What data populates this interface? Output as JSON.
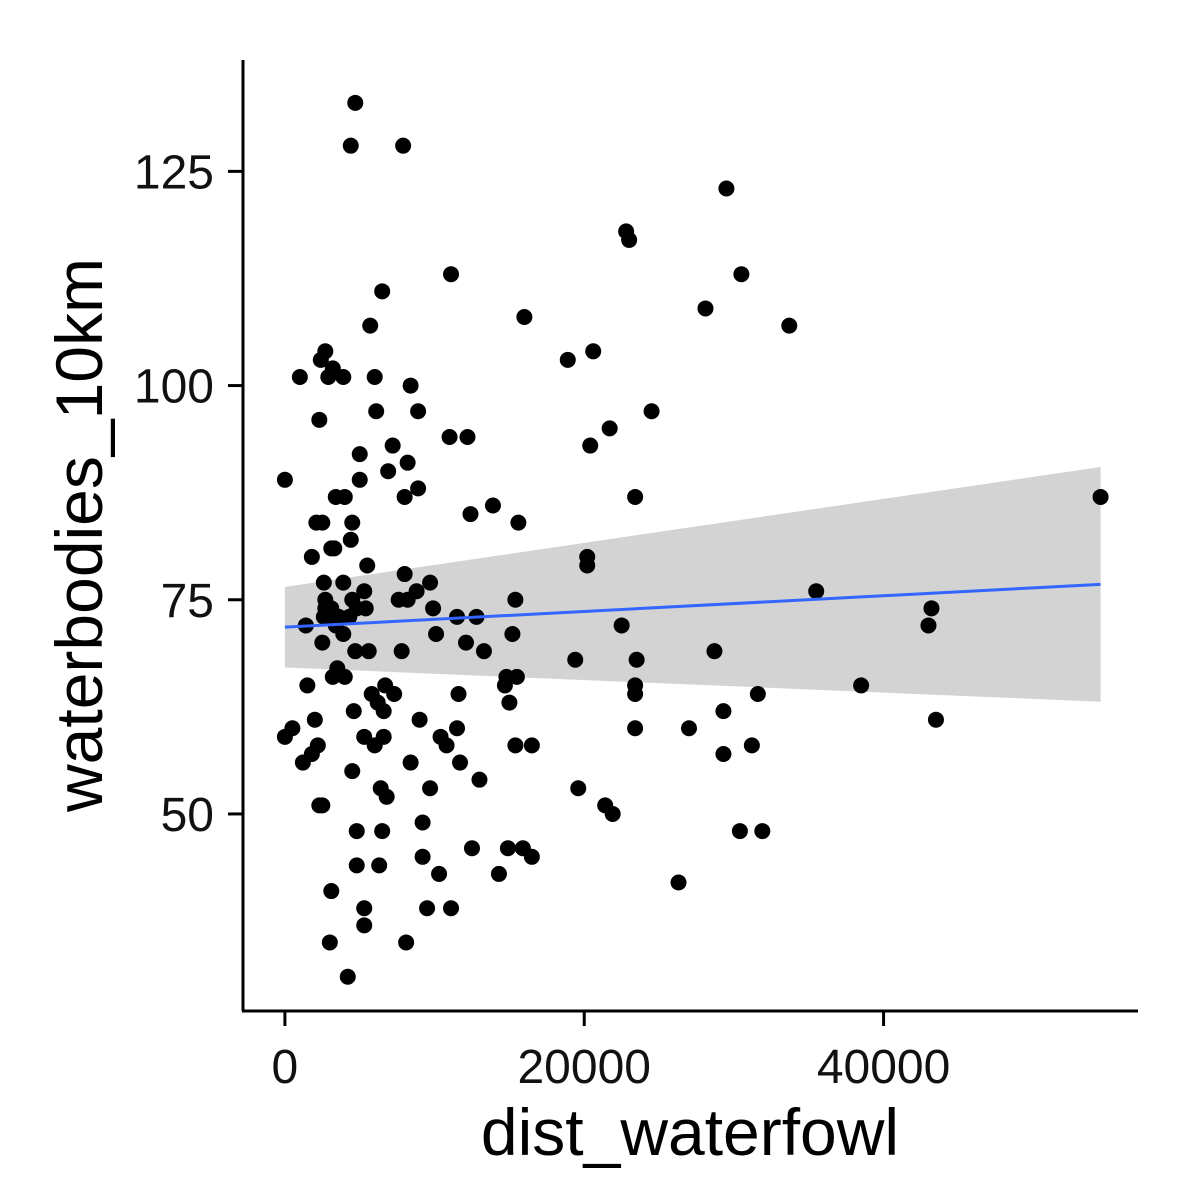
{
  "chart_data": {
    "type": "scatter",
    "title": "",
    "xlabel": "dist_waterfowl",
    "ylabel": "waterbodies_10km",
    "xlim": [
      -2800,
      57000
    ],
    "ylim": [
      27,
      138
    ],
    "xticks": [
      0,
      20000,
      40000
    ],
    "xtick_labels": [
      "0",
      "20000",
      "40000"
    ],
    "yticks": [
      50,
      75,
      100,
      125
    ],
    "ytick_labels": [
      "50",
      "75",
      "100",
      "125"
    ],
    "grid": false,
    "legend": "none",
    "point_color": "#000000",
    "smooth": {
      "method": "linear",
      "color": "#3366FF",
      "band_color": "#D3D3D3",
      "x_range": [
        0,
        54500
      ],
      "fit": [
        71.8,
        76.8
      ],
      "lower": [
        67.1,
        63.1
      ],
      "upper": [
        76.5,
        90.5
      ]
    },
    "points": [
      [
        4700,
        133
      ],
      [
        4400,
        128
      ],
      [
        7900,
        128
      ],
      [
        29500,
        123
      ],
      [
        22800,
        118
      ],
      [
        23000,
        117
      ],
      [
        11100,
        113
      ],
      [
        30500,
        113
      ],
      [
        6500,
        111
      ],
      [
        16000,
        108
      ],
      [
        28100,
        109
      ],
      [
        33700,
        107
      ],
      [
        5700,
        107
      ],
      [
        18900,
        103
      ],
      [
        20600,
        104
      ],
      [
        2700,
        104
      ],
      [
        2400,
        103
      ],
      [
        2900,
        101
      ],
      [
        3200,
        102
      ],
      [
        1000,
        101
      ],
      [
        3900,
        101
      ],
      [
        6000,
        101
      ],
      [
        8400,
        100
      ],
      [
        6100,
        97
      ],
      [
        8900,
        97
      ],
      [
        24500,
        97
      ],
      [
        2300,
        96
      ],
      [
        21700,
        95
      ],
      [
        11000,
        94
      ],
      [
        12200,
        94
      ],
      [
        7200,
        93
      ],
      [
        20400,
        93
      ],
      [
        5000,
        92
      ],
      [
        8200,
        91
      ],
      [
        6900,
        90
      ],
      [
        0,
        89
      ],
      [
        5000,
        89
      ],
      [
        8900,
        88
      ],
      [
        8000,
        87
      ],
      [
        3400,
        87
      ],
      [
        4000,
        87
      ],
      [
        23400,
        87
      ],
      [
        54500,
        87
      ],
      [
        13900,
        86
      ],
      [
        12400,
        85
      ],
      [
        2100,
        84
      ],
      [
        2500,
        84
      ],
      [
        4500,
        84
      ],
      [
        15600,
        84
      ],
      [
        4400,
        82
      ],
      [
        3100,
        81
      ],
      [
        3300,
        81
      ],
      [
        1800,
        80
      ],
      [
        20200,
        80
      ],
      [
        20200,
        79
      ],
      [
        5500,
        79
      ],
      [
        8000,
        78
      ],
      [
        2600,
        77
      ],
      [
        3900,
        77
      ],
      [
        9700,
        77
      ],
      [
        8800,
        76
      ],
      [
        5300,
        76
      ],
      [
        35500,
        76
      ],
      [
        2700,
        75
      ],
      [
        4500,
        75
      ],
      [
        7600,
        75
      ],
      [
        8200,
        75
      ],
      [
        15400,
        75
      ],
      [
        2700,
        74
      ],
      [
        3100,
        74
      ],
      [
        4800,
        74
      ],
      [
        5400,
        74
      ],
      [
        9900,
        74
      ],
      [
        43200,
        74
      ],
      [
        2600,
        73
      ],
      [
        3600,
        73
      ],
      [
        4300,
        73
      ],
      [
        11500,
        73
      ],
      [
        12800,
        73
      ],
      [
        1400,
        72
      ],
      [
        3400,
        72
      ],
      [
        22500,
        72
      ],
      [
        43000,
        72
      ],
      [
        3900,
        71
      ],
      [
        10100,
        71
      ],
      [
        15200,
        71
      ],
      [
        2500,
        70
      ],
      [
        12100,
        70
      ],
      [
        4700,
        69
      ],
      [
        5600,
        69
      ],
      [
        7800,
        69
      ],
      [
        13300,
        69
      ],
      [
        28700,
        69
      ],
      [
        19400,
        68
      ],
      [
        23500,
        68
      ],
      [
        3500,
        67
      ],
      [
        3200,
        66
      ],
      [
        4000,
        66
      ],
      [
        14800,
        66
      ],
      [
        15500,
        66
      ],
      [
        1500,
        65
      ],
      [
        6700,
        65
      ],
      [
        14700,
        65
      ],
      [
        23400,
        65
      ],
      [
        38500,
        65
      ],
      [
        5800,
        64
      ],
      [
        7300,
        64
      ],
      [
        11600,
        64
      ],
      [
        23400,
        64
      ],
      [
        31600,
        64
      ],
      [
        6200,
        63
      ],
      [
        15000,
        63
      ],
      [
        6600,
        62
      ],
      [
        4600,
        62
      ],
      [
        29300,
        62
      ],
      [
        2000,
        61
      ],
      [
        9000,
        61
      ],
      [
        43500,
        61
      ],
      [
        500,
        60
      ],
      [
        11500,
        60
      ],
      [
        23400,
        60
      ],
      [
        27000,
        60
      ],
      [
        0,
        59
      ],
      [
        5300,
        59
      ],
      [
        6600,
        59
      ],
      [
        10400,
        59
      ],
      [
        2200,
        58
      ],
      [
        6000,
        58
      ],
      [
        10800,
        58
      ],
      [
        15400,
        58
      ],
      [
        16500,
        58
      ],
      [
        31200,
        58
      ],
      [
        1800,
        57
      ],
      [
        1200,
        56
      ],
      [
        8400,
        56
      ],
      [
        11700,
        56
      ],
      [
        29300,
        57
      ],
      [
        4500,
        55
      ],
      [
        13000,
        54
      ],
      [
        6400,
        53
      ],
      [
        9700,
        53
      ],
      [
        19600,
        53
      ],
      [
        6800,
        52
      ],
      [
        2300,
        51
      ],
      [
        2500,
        51
      ],
      [
        21400,
        51
      ],
      [
        21900,
        50
      ],
      [
        9200,
        49
      ],
      [
        4800,
        48
      ],
      [
        6500,
        48
      ],
      [
        30400,
        48
      ],
      [
        31900,
        48
      ],
      [
        12500,
        46
      ],
      [
        14900,
        46
      ],
      [
        15900,
        46
      ],
      [
        9200,
        45
      ],
      [
        16500,
        45
      ],
      [
        4800,
        44
      ],
      [
        6300,
        44
      ],
      [
        10300,
        43
      ],
      [
        14300,
        43
      ],
      [
        26300,
        42
      ],
      [
        3100,
        41
      ],
      [
        5300,
        39
      ],
      [
        9500,
        39
      ],
      [
        11100,
        39
      ],
      [
        5300,
        37
      ],
      [
        3000,
        35
      ],
      [
        8100,
        35
      ],
      [
        4200,
        31
      ]
    ]
  }
}
